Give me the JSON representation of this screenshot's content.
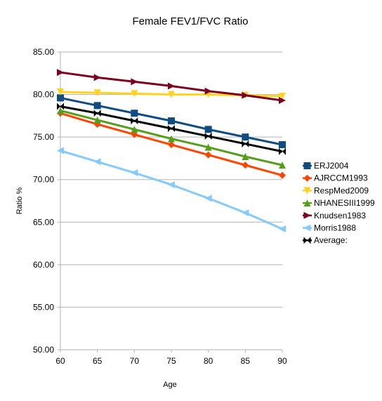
{
  "chart_data": {
    "type": "line",
    "title": "Female FEV1/FVC Ratio",
    "xlabel": "Age",
    "ylabel": "Ratio %",
    "x": [
      60,
      65,
      70,
      75,
      80,
      85,
      90
    ],
    "x_tick_labels": [
      "60",
      "65",
      "70",
      "75",
      "80",
      "85",
      "90"
    ],
    "ylim": [
      50,
      85
    ],
    "y_tick_labels": [
      "50.00",
      "55.00",
      "60.00",
      "65.00",
      "70.00",
      "75.00",
      "80.00",
      "85.00"
    ],
    "grid": "horizontal",
    "legend_position": "right",
    "series": [
      {
        "name": "ERJ2004",
        "color": "#0f4c81",
        "marker": "square",
        "values": [
          79.6,
          78.7,
          77.8,
          76.9,
          75.9,
          75.0,
          74.1
        ]
      },
      {
        "name": "AJRCCM1993",
        "color": "#ff4500",
        "marker": "diamond",
        "values": [
          77.8,
          76.5,
          75.3,
          74.1,
          72.9,
          71.7,
          70.5
        ]
      },
      {
        "name": "RespMed2009",
        "color": "#ffd320",
        "marker": "triangle-down",
        "values": [
          80.3,
          80.2,
          80.1,
          80.0,
          80.0,
          79.9,
          79.8
        ]
      },
      {
        "name": "NHANESIII1999",
        "color": "#579d1c",
        "marker": "triangle-up",
        "values": [
          78.1,
          77.0,
          75.9,
          74.8,
          73.8,
          72.7,
          71.7
        ]
      },
      {
        "name": "Knudsen1983",
        "color": "#7e0021",
        "marker": "arrow-right",
        "values": [
          82.6,
          82.0,
          81.5,
          81.0,
          80.4,
          79.9,
          79.3
        ]
      },
      {
        "name": "Morris1988",
        "color": "#83caff",
        "marker": "arrow-left",
        "values": [
          73.4,
          72.1,
          70.8,
          69.4,
          67.8,
          66.1,
          64.2
        ]
      },
      {
        "name": "Average:",
        "color": "#000000",
        "marker": "bowtie",
        "values": [
          78.6,
          77.8,
          76.9,
          76.0,
          75.1,
          74.2,
          73.3
        ]
      }
    ]
  }
}
